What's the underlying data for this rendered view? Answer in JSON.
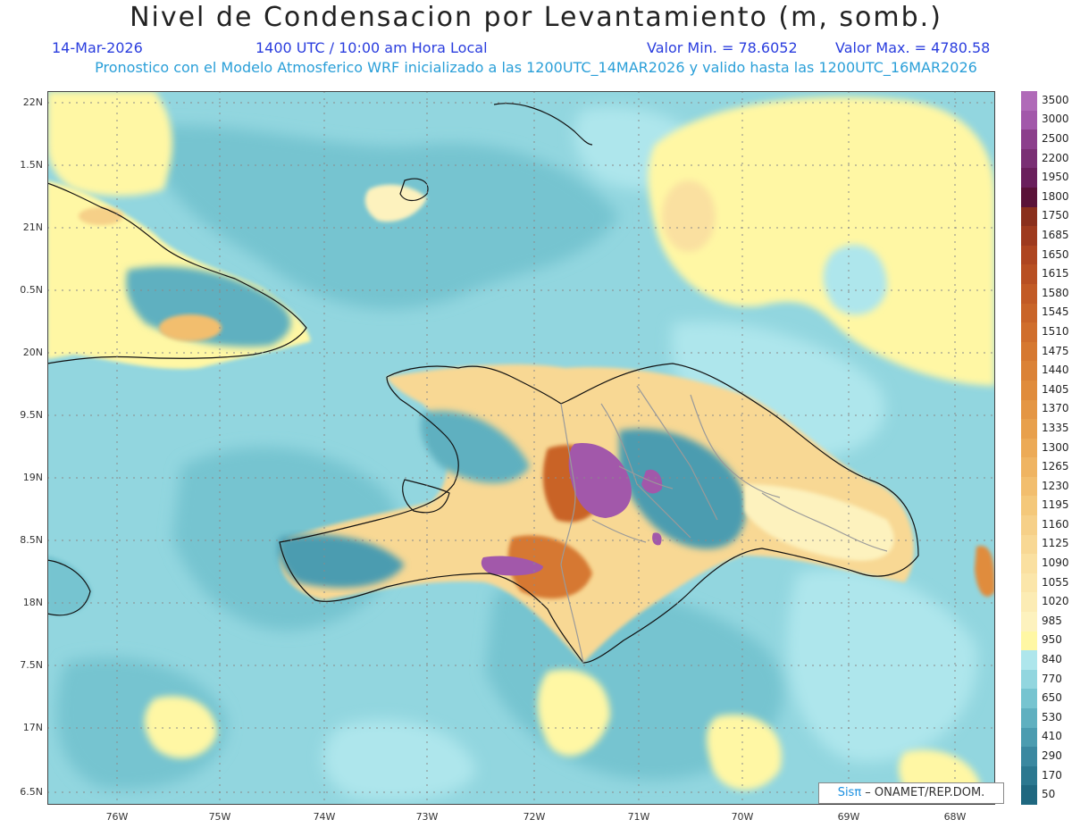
{
  "title": "Nivel de Condensacion por Levantamiento (m, somb.)",
  "date": "14-Mar-2026",
  "time": "1400 UTC / 10:00 am Hora Local",
  "min_label": "Valor Min. = 78.6052",
  "max_label": "Valor Max. = 4780.58",
  "forecast_line": "Pronostico con el Modelo Atmosferico WRF inicializado a las 1200UTC_14MAR2026 y valido hasta las  1200UTC_16MAR2026",
  "credit_accent": "Sisπ",
  "credit_rest": " – ONAMET/REP.DOM.",
  "latitude_labels": [
    "22N",
    "1.5N",
    "21N",
    "0.5N",
    "20N",
    "9.5N",
    "19N",
    "8.5N",
    "18N",
    "7.5N",
    "17N",
    "6.5N"
  ],
  "longitude_labels": [
    "76W",
    "75W",
    "74W",
    "73W",
    "72W",
    "71W",
    "70W",
    "69W",
    "68W"
  ],
  "colorbar": {
    "levels": [
      "3500",
      "3000",
      "2500",
      "2200",
      "1950",
      "1800",
      "1750",
      "1685",
      "1650",
      "1615",
      "1580",
      "1545",
      "1510",
      "1475",
      "1440",
      "1405",
      "1370",
      "1335",
      "1300",
      "1265",
      "1230",
      "1195",
      "1160",
      "1125",
      "1090",
      "1055",
      "1020",
      "985",
      "950",
      "840",
      "770",
      "650",
      "530",
      "410",
      "290",
      "170",
      "50"
    ],
    "colors": [
      "#b06ab8",
      "#a258aa",
      "#8c3f8c",
      "#7a2f74",
      "#6a1f5c",
      "#5a1238",
      "#8a2f1c",
      "#9e3a1e",
      "#ae4520",
      "#b84f22",
      "#c25a25",
      "#c96428",
      "#d06e2c",
      "#d67830",
      "#db8236",
      "#e08c3c",
      "#e49644",
      "#e8a04c",
      "#ecaa56",
      "#efb462",
      "#f2be6e",
      "#f4c87a",
      "#f6d088",
      "#f8d894",
      "#fae0a0",
      "#fbe6aa",
      "#fcecb4",
      "#fdf2be",
      "#fff7a4",
      "#aee6ec",
      "#92d6df",
      "#76c4d0",
      "#5fb0c0",
      "#4b9cb0",
      "#3a88a0",
      "#2b7890",
      "#1f6880"
    ]
  }
}
